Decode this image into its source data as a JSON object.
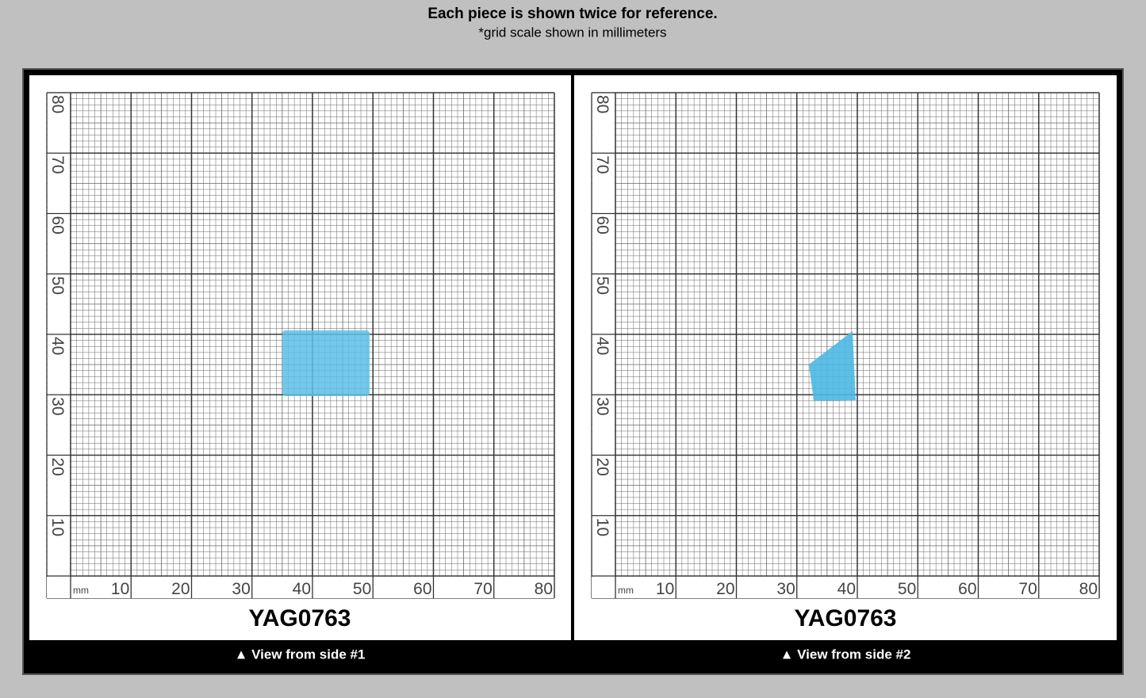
{
  "header": {
    "title": "Each piece is shown twice for reference.",
    "subtitle": "*grid scale shown in millimeters"
  },
  "grid": {
    "unit": "mm",
    "x_labels": [
      "10",
      "20",
      "30",
      "40",
      "50",
      "60",
      "70",
      "80"
    ],
    "y_labels": [
      "10",
      "20",
      "30",
      "40",
      "50",
      "60",
      "70",
      "80"
    ]
  },
  "panels": [
    {
      "label": "YAG0763",
      "caption": "▲ View from side #1"
    },
    {
      "label": "YAG0763",
      "caption": "▲ View from side #2"
    }
  ]
}
